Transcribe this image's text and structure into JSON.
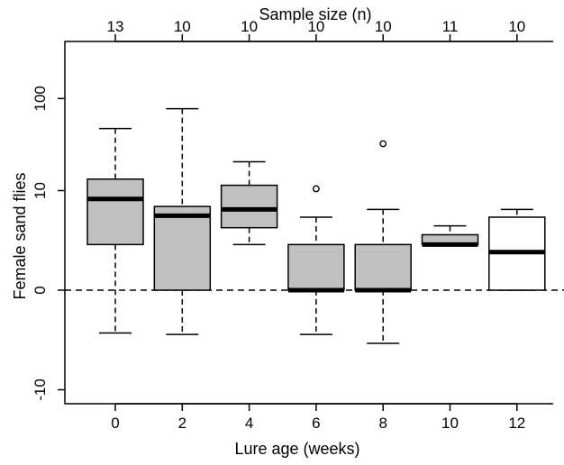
{
  "chart_data": {
    "type": "boxplot",
    "xlabel": "Lure age (weeks)",
    "ylabel": "Female sand flies",
    "top_axis_label": "Sample size (n)",
    "y_scale": "symmetric-log (log10(y+1) style)",
    "y_ticks": [
      {
        "label": "-10",
        "value": -10
      },
      {
        "label": "0",
        "value": 0
      },
      {
        "label": "10",
        "value": 10
      },
      {
        "label": "100",
        "value": 100
      }
    ],
    "ylim": [
      -14,
      150
    ],
    "reference_line": {
      "value": 0,
      "style": "dashed"
    },
    "groups": [
      {
        "x": "0",
        "n": "13",
        "whisker_low": -1.8,
        "q1": 2.0,
        "median": 8.0,
        "q3": 13.5,
        "whisker_high": 48,
        "outliers": [],
        "fill": "#c0c0c0"
      },
      {
        "x": "2",
        "n": "10",
        "whisker_low": -1.9,
        "q1": 0,
        "median": 5.0,
        "q3": 6.5,
        "whisker_high": 78,
        "outliers": [],
        "fill": "#c0c0c0"
      },
      {
        "x": "4",
        "n": "10",
        "whisker_low": 2.0,
        "q1": 3.5,
        "median": 6.0,
        "q3": 11.5,
        "whisker_high": 21,
        "outliers": [],
        "fill": "#c0c0c0"
      },
      {
        "x": "6",
        "n": "10",
        "whisker_low": -1.9,
        "q1": 0,
        "median": 0,
        "q3": 2.0,
        "whisker_high": 4.8,
        "outliers": [
          10.5
        ],
        "fill": "#c0c0c0"
      },
      {
        "x": "8",
        "n": "10",
        "whisker_low": -2.6,
        "q1": 0,
        "median": 0,
        "q3": 2.0,
        "whisker_high": 6.0,
        "outliers": [
          33
        ],
        "fill": "#c0c0c0"
      },
      {
        "x": "10",
        "n": "11",
        "whisker_low": 2.0,
        "q1": 2.0,
        "median": 2.0,
        "q3": 2.8,
        "whisker_high": 3.7,
        "outliers": [],
        "fill": "#c0c0c0"
      },
      {
        "x": "12",
        "n": "10",
        "whisker_low": 0,
        "q1": 0,
        "median": 1.5,
        "q3": 4.8,
        "whisker_high": 6.0,
        "outliers": [],
        "fill": "#ffffff"
      }
    ],
    "x_ticks": [
      "0",
      "2",
      "4",
      "6",
      "8",
      "10",
      "12"
    ]
  }
}
